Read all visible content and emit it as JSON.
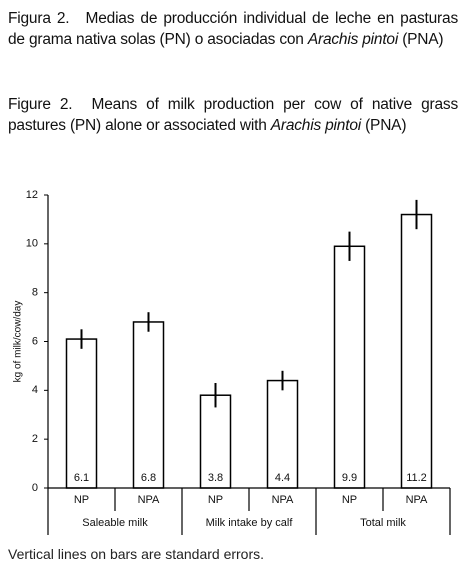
{
  "captions": [
    {
      "figure": "Figura 2.",
      "text": "Medias de producción individual de leche en pasturas de grama nativa solas (PN) o asociadas con",
      "species": "Arachis pintoi",
      "suffix": "(PNA)"
    },
    {
      "figure": "Figure 2.",
      "text": "Means of milk production per cow of native grass pastures (PN) alone or associated with",
      "species": "Arachis pintoi",
      "suffix": "(PNA)"
    }
  ],
  "chart_data": {
    "type": "bar",
    "ylabel": "kg of milk/cow/day",
    "categories": [
      "NP",
      "NPA",
      "NP",
      "NPA",
      "NP",
      "NPA"
    ],
    "groups": [
      "Saleable milk",
      "Milk intake by calf",
      "Total milk"
    ],
    "values": [
      6.1,
      6.8,
      3.8,
      4.4,
      9.9,
      11.2
    ],
    "errors": [
      0.4,
      0.4,
      0.5,
      0.4,
      0.6,
      0.6
    ],
    "color": "#ffffff",
    "ylim": [
      0,
      12
    ],
    "yticks": [
      0,
      2,
      4,
      6,
      8,
      10,
      12
    ]
  },
  "note": "Vertical lines on bars are standard errors."
}
